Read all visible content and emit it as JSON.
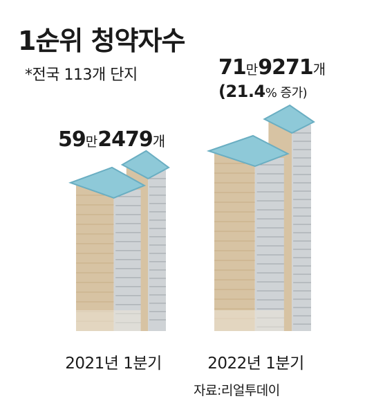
{
  "title": "1순위 청약자수",
  "subtitle": "*전국 113개 단지",
  "source": "자료:리얼투데이",
  "colors": {
    "facade": "#d7c3a3",
    "facade_dark": "#c7ae86",
    "windows": "#cfd3d6",
    "window_line": "#9da3a8",
    "roof": "#8ec9d8",
    "roof_dark": "#6aaec2",
    "base": "#ede6d8"
  },
  "labels": [
    {
      "man": "59",
      "man_unit": "만",
      "rest": "2479",
      "unit": "개"
    },
    {
      "man": "71",
      "man_unit": "만",
      "rest": "9271",
      "unit": "개",
      "change": "(21.4",
      "change_unit": "% 증가)"
    }
  ],
  "chart_data": {
    "type": "bar",
    "title": "1순위 청약자수",
    "subtitle": "*전국 113개 단지",
    "categories": [
      "2021년 1분기",
      "2022년 1분기"
    ],
    "values": [
      592479,
      719271
    ],
    "unit": "개",
    "change_pct": 21.4,
    "ylim": [
      0,
      719271
    ],
    "grid": false,
    "source": "자료:리얼투데이"
  }
}
